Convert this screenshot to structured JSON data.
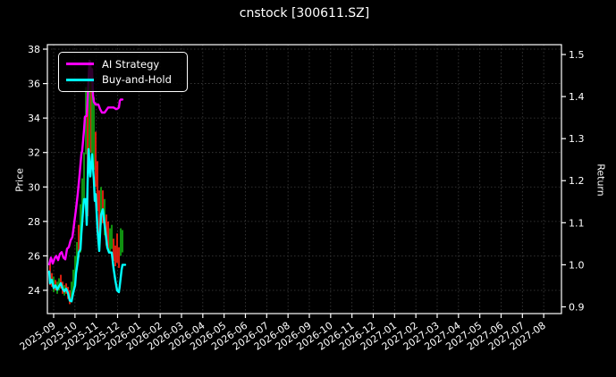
{
  "chart": {
    "title": "cnstock [300611.SZ]"
  },
  "chart_data": {
    "type": "line+candlestick",
    "title": "cnstock [300611.SZ]",
    "background_color": "#000000",
    "foreground_color": "#ffffff",
    "grid": {
      "on": true,
      "color": "#3f3f3f",
      "style": "dotted"
    },
    "x_axis": {
      "tick_labels": [
        "2025-09",
        "2025-10",
        "2025-11",
        "2025-12",
        "2026-01",
        "2026-02",
        "2026-03",
        "2026-04",
        "2026-05",
        "2026-06",
        "2026-07",
        "2026-08",
        "2026-09",
        "2026-10",
        "2026-11",
        "2026-12",
        "2027-01",
        "2027-02",
        "2027-03",
        "2027-04",
        "2027-05",
        "2027-06",
        "2027-07",
        "2027-08"
      ],
      "label_rotation_deg": 35,
      "range_months": [
        -0.294,
        23.833
      ]
    },
    "left_axis": {
      "label": "Price",
      "ticks": [
        24,
        26,
        28,
        30,
        32,
        34,
        36,
        38
      ],
      "range": [
        22.65,
        38.26
      ]
    },
    "right_axis": {
      "label": "Return",
      "ticks": [
        0.9,
        1.0,
        1.1,
        1.2,
        1.3,
        1.4,
        1.5
      ],
      "range": [
        0.884,
        1.5234
      ]
    },
    "legend": {
      "position": "upper-left",
      "entries": [
        {
          "name": "AI Strategy",
          "color": "#ff00ff"
        },
        {
          "name": "Buy-and-Hold",
          "color": "#00ffff"
        }
      ]
    },
    "series": [
      {
        "name": "Buy-and-Hold",
        "color": "#00ffff",
        "axis": "right",
        "line_width": 2.4,
        "points": [
          [
            -0.21,
            0.984
          ],
          [
            -0.168,
            0.956
          ],
          [
            -0.084,
            0.964
          ],
          [
            0,
            0.945
          ],
          [
            0.084,
            0.951
          ],
          [
            0.168,
            0.941
          ],
          [
            0.252,
            0.949
          ],
          [
            0.336,
            0.956
          ],
          [
            0.42,
            0.943
          ],
          [
            0.504,
            0.937
          ],
          [
            0.588,
            0.943
          ],
          [
            0.672,
            0.933
          ],
          [
            0.755,
            0.915
          ],
          [
            0.839,
            0.913
          ],
          [
            0.923,
            0.935
          ],
          [
            1.007,
            0.951
          ],
          [
            1.049,
            0.98
          ],
          [
            1.133,
            1.009
          ],
          [
            1.175,
            1.029
          ],
          [
            1.259,
            1.037
          ],
          [
            1.301,
            1.074
          ],
          [
            1.385,
            1.132
          ],
          [
            1.427,
            1.156
          ],
          [
            1.511,
            1.156
          ],
          [
            1.553,
            1.095
          ],
          [
            1.595,
            1.197
          ],
          [
            1.637,
            1.275
          ],
          [
            1.721,
            1.21
          ],
          [
            1.805,
            1.263
          ],
          [
            1.889,
            1.201
          ],
          [
            1.93,
            1.152
          ],
          [
            1.972,
            1.168
          ],
          [
            2.056,
            1.086
          ],
          [
            2.14,
            1.033
          ],
          [
            2.224,
            1.119
          ],
          [
            2.308,
            1.132
          ],
          [
            2.392,
            1.095
          ],
          [
            2.434,
            1.078
          ],
          [
            2.518,
            1.041
          ],
          [
            2.602,
            1.029
          ],
          [
            2.728,
            1.029
          ],
          [
            2.812,
            0.992
          ],
          [
            2.896,
            0.963
          ],
          [
            2.98,
            0.939
          ],
          [
            3.064,
            0.935
          ],
          [
            3.106,
            0.951
          ],
          [
            3.19,
            0.988
          ],
          [
            3.232,
            1.0
          ],
          [
            3.358,
            1.0
          ]
        ]
      },
      {
        "name": "AI Strategy",
        "color": "#ff00ff",
        "axis": "right",
        "line_width": 2.4,
        "points": [
          [
            -0.21,
            1.001
          ],
          [
            -0.126,
            1.017
          ],
          [
            -0.042,
            1.003
          ],
          [
            0.042,
            1.015
          ],
          [
            0.126,
            1.021
          ],
          [
            0.21,
            1.011
          ],
          [
            0.294,
            1.026
          ],
          [
            0.378,
            1.03
          ],
          [
            0.462,
            1.017
          ],
          [
            0.546,
            1.013
          ],
          [
            0.63,
            1.038
          ],
          [
            0.713,
            1.042
          ],
          [
            0.797,
            1.058
          ],
          [
            0.881,
            1.066
          ],
          [
            0.965,
            1.099
          ],
          [
            1.049,
            1.132
          ],
          [
            1.133,
            1.169
          ],
          [
            1.217,
            1.214
          ],
          [
            1.301,
            1.263
          ],
          [
            1.343,
            1.272
          ],
          [
            1.427,
            1.321
          ],
          [
            1.469,
            1.352
          ],
          [
            1.553,
            1.354
          ],
          [
            1.595,
            1.395
          ],
          [
            1.679,
            1.485
          ],
          [
            1.72,
            1.483
          ],
          [
            1.762,
            1.436
          ],
          [
            1.804,
            1.465
          ],
          [
            1.846,
            1.403
          ],
          [
            1.888,
            1.387
          ],
          [
            1.972,
            1.381
          ],
          [
            2.098,
            1.381
          ],
          [
            2.182,
            1.37
          ],
          [
            2.266,
            1.362
          ],
          [
            2.392,
            1.362
          ],
          [
            2.476,
            1.368
          ],
          [
            2.56,
            1.374
          ],
          [
            2.812,
            1.374
          ],
          [
            2.938,
            1.37
          ],
          [
            3.022,
            1.372
          ],
          [
            3.064,
            1.374
          ],
          [
            3.106,
            1.39
          ],
          [
            3.148,
            1.393
          ],
          [
            3.232,
            1.393
          ]
        ]
      }
    ],
    "candles": {
      "up_color": "#12a012",
      "down_color": "#ee2211",
      "bar_width": 1.8,
      "bars": [
        [
          -0.168,
          25.8,
          24.3,
          "d"
        ],
        [
          -0.084,
          25.0,
          24.2,
          "d"
        ],
        [
          0,
          24.8,
          23.9,
          "u"
        ],
        [
          0.084,
          24.6,
          24.0,
          "d"
        ],
        [
          0.168,
          24.5,
          23.8,
          "u"
        ],
        [
          0.252,
          24.7,
          24.0,
          "u"
        ],
        [
          0.336,
          24.9,
          24.1,
          "d"
        ],
        [
          0.42,
          24.5,
          23.8,
          "d"
        ],
        [
          0.504,
          24.3,
          23.7,
          "u"
        ],
        [
          0.588,
          24.4,
          23.8,
          "d"
        ],
        [
          0.672,
          24.2,
          23.5,
          "d"
        ],
        [
          0.755,
          24.0,
          23.2,
          "d"
        ],
        [
          0.839,
          24.5,
          23.3,
          "u"
        ],
        [
          0.923,
          25.2,
          23.8,
          "u"
        ],
        [
          1.007,
          26.0,
          24.3,
          "u"
        ],
        [
          1.091,
          26.8,
          25.2,
          "u"
        ],
        [
          1.175,
          27.8,
          25.9,
          "d"
        ],
        [
          1.259,
          29.0,
          26.2,
          "u"
        ],
        [
          1.343,
          30.5,
          27.8,
          "u"
        ],
        [
          1.427,
          32.0,
          29.0,
          "u"
        ],
        [
          1.511,
          35.8,
          31.9,
          "u"
        ],
        [
          1.595,
          35.2,
          28.3,
          "d"
        ],
        [
          1.679,
          36.9,
          31.5,
          "u"
        ],
        [
          1.762,
          36.3,
          32.0,
          "d"
        ],
        [
          1.804,
          36.4,
          31.9,
          "u"
        ],
        [
          1.888,
          35.2,
          31.0,
          "u"
        ],
        [
          1.972,
          33.2,
          30.0,
          "d"
        ],
        [
          2.056,
          31.5,
          28.6,
          "d"
        ],
        [
          2.14,
          29.8,
          27.3,
          "d"
        ],
        [
          2.224,
          30.0,
          27.8,
          "u"
        ],
        [
          2.308,
          29.8,
          27.9,
          "d"
        ],
        [
          2.392,
          29.3,
          27.2,
          "u"
        ],
        [
          2.476,
          28.4,
          26.6,
          "d"
        ],
        [
          2.56,
          28.0,
          26.4,
          "d"
        ],
        [
          2.644,
          27.6,
          26.2,
          "u"
        ],
        [
          2.728,
          27.8,
          26.4,
          "u"
        ],
        [
          2.812,
          27.0,
          25.7,
          "d"
        ],
        [
          2.896,
          26.6,
          25.4,
          "d"
        ],
        [
          2.98,
          27.3,
          25.6,
          "d"
        ],
        [
          3.064,
          26.5,
          25.3,
          "d"
        ],
        [
          3.148,
          27.6,
          26.0,
          "u"
        ],
        [
          3.232,
          27.5,
          26.2,
          "u"
        ]
      ]
    }
  }
}
